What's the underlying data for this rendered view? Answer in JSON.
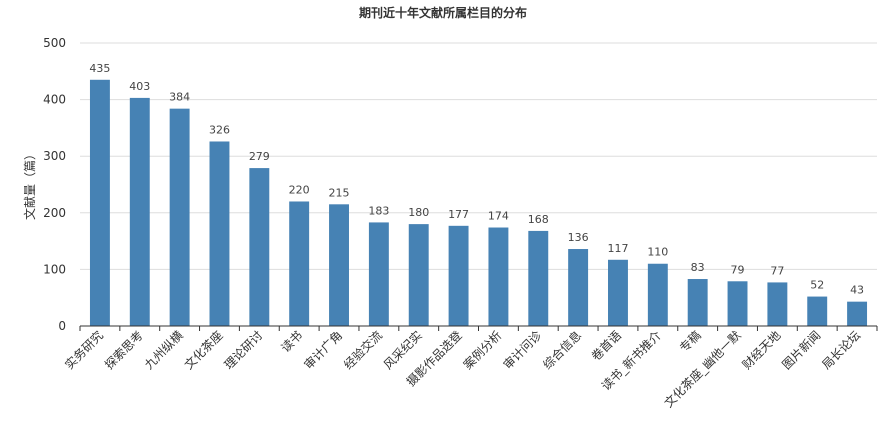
{
  "chart_data": {
    "type": "bar",
    "title": "期刊近十年文献所属栏目的分布",
    "xlabel": "",
    "ylabel": "文献量（篇）",
    "ylim": [
      0,
      500
    ],
    "yticks": [
      0,
      100,
      200,
      300,
      400,
      500
    ],
    "grid": true,
    "bar_color": "#4682b4",
    "categories": [
      "实务研究",
      "探索思考",
      "九州纵横",
      "文化茶座",
      "理论研讨",
      "读书",
      "审计广角",
      "经验交流",
      "风采纪实",
      "摄影作品选登",
      "案例分析",
      "审计问诊",
      "综合信息",
      "卷首语",
      "读书_新书推介",
      "专稿",
      "文化茶座_幽他一默",
      "财经天地",
      "图片新闻",
      "局长论坛"
    ],
    "values": [
      435,
      403,
      384,
      326,
      279,
      220,
      215,
      183,
      180,
      177,
      174,
      168,
      136,
      117,
      110,
      83,
      79,
      77,
      52,
      43
    ]
  }
}
